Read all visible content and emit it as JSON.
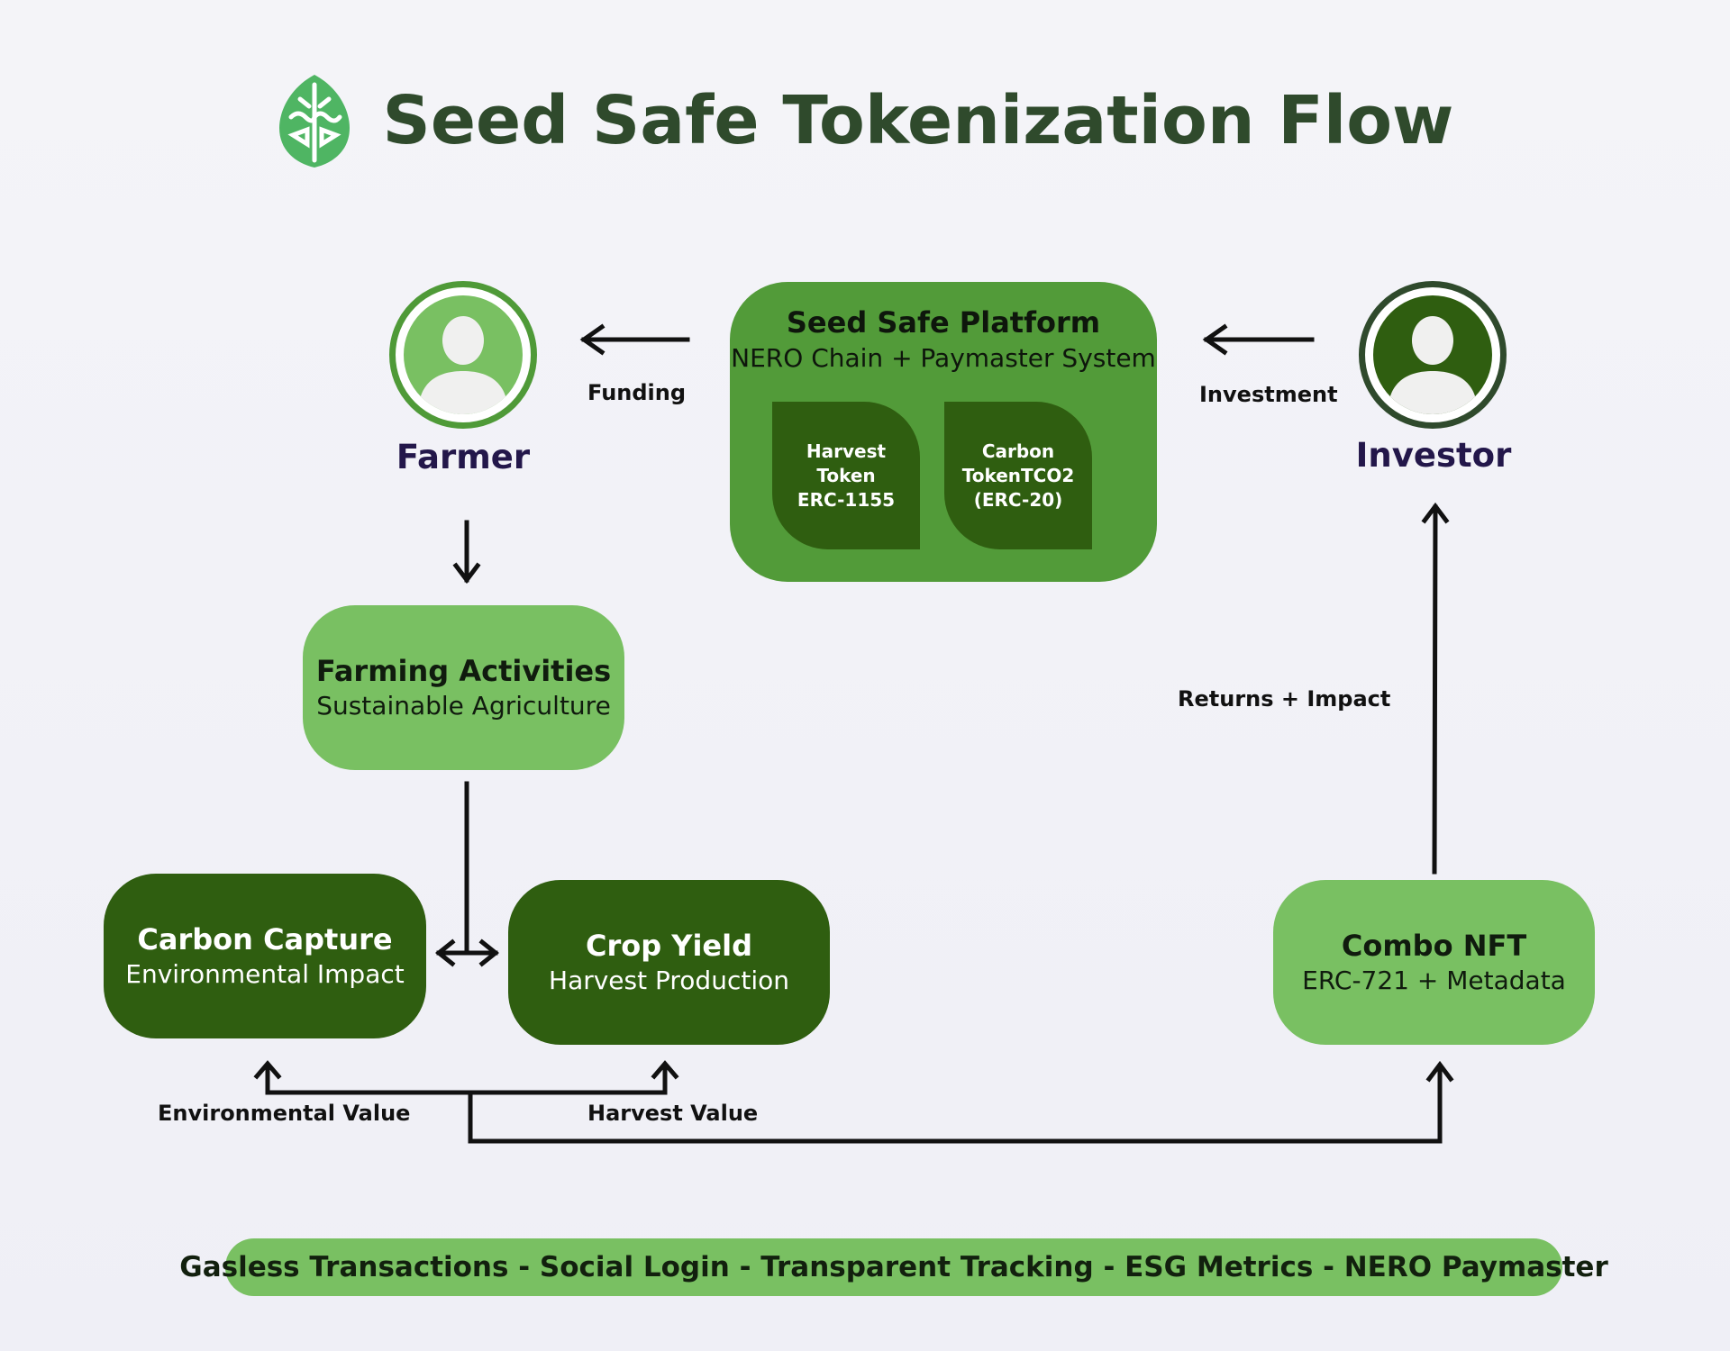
{
  "header": {
    "title": "Seed Safe Tokenization Flow",
    "logo_icon": "leaf-logo-icon"
  },
  "colors": {
    "title": "#2f4a2c",
    "light_green": "#79c062",
    "mid_green": "#529b39",
    "dark_green": "#2f5e10",
    "actor_name": "#23174a",
    "arrow": "#111111"
  },
  "actors": {
    "farmer": {
      "name": "Farmer",
      "icon": "person-avatar-icon"
    },
    "investor": {
      "name": "Investor",
      "icon": "person-avatar-icon"
    }
  },
  "platform": {
    "title": "Seed Safe Platform",
    "subtitle": "NERO Chain + Paymaster System",
    "harvest_token": {
      "line1": "Harvest Token",
      "line2": "ERC-1155"
    },
    "carbon_token": {
      "line1": "Carbon",
      "line2": "TokenTCO2",
      "line3": "(ERC-20)"
    }
  },
  "nodes": {
    "farming": {
      "title": "Farming Activities",
      "subtitle": "Sustainable Agriculture"
    },
    "carbon": {
      "title": "Carbon Capture",
      "subtitle": "Environmental Impact"
    },
    "crop": {
      "title": "Crop Yield",
      "subtitle": "Harvest Production"
    },
    "nft": {
      "title": "Combo NFT",
      "subtitle": "ERC-721 + Metadata"
    }
  },
  "edge_labels": {
    "funding": "Funding",
    "investment": "Investment",
    "returns": "Returns + Impact",
    "environmental_value": "Environmental Value",
    "harvest_value": "Harvest Value"
  },
  "footer": {
    "banner": "Gasless Transactions - Social Login -  Transparent Tracking - ESG Metrics - NERO Paymaster"
  }
}
